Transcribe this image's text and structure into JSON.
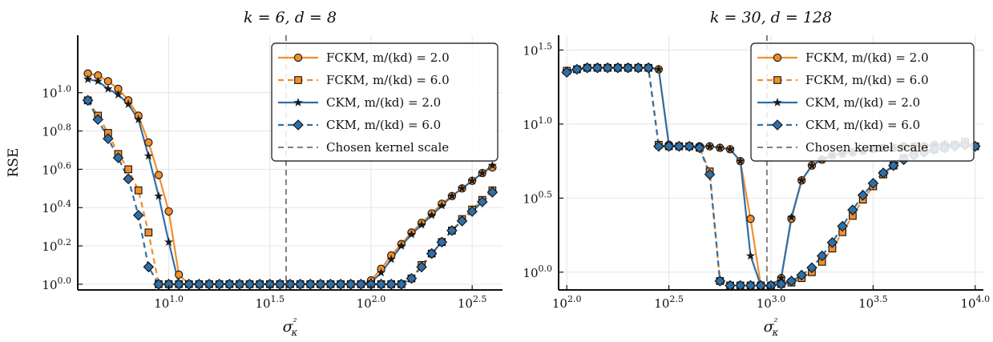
{
  "chart_data": [
    {
      "type": "line",
      "title": "k = 6,  d = 8",
      "xlabel": "σ²κ",
      "ylabel": "RSE",
      "xscale": "log10",
      "yscale": "log10",
      "xlim": [
        0.55,
        2.65
      ],
      "ylim": [
        -0.03,
        1.3
      ],
      "xticks": [
        1.0,
        1.5,
        2.0,
        2.5
      ],
      "xtick_labels": [
        "10^1.0",
        "10^1.5",
        "10^2.0",
        "10^2.5"
      ],
      "yticks": [
        0.0,
        0.2,
        0.4,
        0.6,
        0.8,
        1.0
      ],
      "ytick_labels": [
        "10^0.0",
        "10^0.2",
        "10^0.4",
        "10^0.6",
        "10^0.8",
        "10^1.0"
      ],
      "grid": true,
      "legend_position": "top-right",
      "vline": {
        "x": 1.58,
        "label": "Chosen kernel scale"
      },
      "series": [
        {
          "name": "FCKM, m/(kd) = 2.0",
          "color": "#f28e2b",
          "dash": "solid",
          "marker": "circle",
          "x": [
            0.6,
            0.65,
            0.7,
            0.75,
            0.8,
            0.85,
            0.9,
            0.95,
            1.0,
            1.05,
            1.1,
            1.15,
            1.2,
            1.25,
            1.3,
            1.35,
            1.4,
            1.45,
            1.5,
            1.55,
            1.6,
            1.65,
            1.7,
            1.75,
            1.8,
            1.85,
            1.9,
            1.95,
            2.0,
            2.05,
            2.1,
            2.15,
            2.2,
            2.25,
            2.3,
            2.35,
            2.4,
            2.45,
            2.5,
            2.55,
            2.6
          ],
          "y": [
            1.1,
            1.09,
            1.06,
            1.02,
            0.96,
            0.88,
            0.74,
            0.57,
            0.38,
            0.05,
            0.0,
            0.0,
            0.0,
            0.0,
            0.0,
            0.0,
            0.0,
            0.0,
            0.0,
            0.0,
            0.0,
            0.0,
            0.0,
            0.0,
            0.0,
            0.0,
            0.0,
            0.0,
            0.02,
            0.08,
            0.15,
            0.21,
            0.27,
            0.32,
            0.37,
            0.42,
            0.46,
            0.5,
            0.54,
            0.58,
            0.61
          ]
        },
        {
          "name": "FCKM, m/(kd) = 6.0",
          "color": "#f28e2b",
          "dash": "dashed",
          "marker": "square",
          "x": [
            0.6,
            0.65,
            0.7,
            0.75,
            0.8,
            0.85,
            0.9,
            0.95,
            1.0,
            1.05,
            1.1,
            1.15,
            1.2,
            1.25,
            1.3,
            1.35,
            1.4,
            1.45,
            1.5,
            1.55,
            1.6,
            1.65,
            1.7,
            1.75,
            1.8,
            1.85,
            1.9,
            1.95,
            2.0,
            2.05,
            2.1,
            2.15,
            2.2,
            2.25,
            2.3,
            2.35,
            2.4,
            2.45,
            2.5,
            2.55,
            2.6
          ],
          "y": [
            0.96,
            0.88,
            0.79,
            0.68,
            0.6,
            0.49,
            0.27,
            0.0,
            0.0,
            0.0,
            0.0,
            0.0,
            0.0,
            0.0,
            0.0,
            0.0,
            0.0,
            0.0,
            0.0,
            0.0,
            0.0,
            0.0,
            0.0,
            0.0,
            0.0,
            0.0,
            0.0,
            0.0,
            0.0,
            0.0,
            0.0,
            0.0,
            0.03,
            0.1,
            0.16,
            0.22,
            0.28,
            0.34,
            0.39,
            0.44,
            0.49
          ]
        },
        {
          "name": "CKM, m/(kd) = 2.0",
          "color": "#2f6fa8",
          "dash": "solid",
          "marker": "star",
          "x": [
            0.6,
            0.65,
            0.7,
            0.75,
            0.8,
            0.85,
            0.9,
            0.95,
            1.0,
            1.05,
            1.1,
            1.15,
            1.2,
            1.25,
            1.3,
            1.35,
            1.4,
            1.45,
            1.5,
            1.55,
            1.6,
            1.65,
            1.7,
            1.75,
            1.8,
            1.85,
            1.9,
            1.95,
            2.0,
            2.05,
            2.1,
            2.15,
            2.2,
            2.25,
            2.3,
            2.35,
            2.4,
            2.45,
            2.5,
            2.55,
            2.6
          ],
          "y": [
            1.07,
            1.06,
            1.02,
            0.99,
            0.94,
            0.86,
            0.67,
            0.46,
            0.22,
            0.0,
            0.0,
            0.0,
            0.0,
            0.0,
            0.0,
            0.0,
            0.0,
            0.0,
            0.0,
            0.0,
            0.0,
            0.0,
            0.0,
            0.0,
            0.0,
            0.0,
            0.0,
            0.0,
            0.01,
            0.06,
            0.13,
            0.2,
            0.26,
            0.31,
            0.36,
            0.41,
            0.46,
            0.5,
            0.54,
            0.58,
            0.62
          ]
        },
        {
          "name": "CKM, m/(kd) = 6.0",
          "color": "#2f6fa8",
          "dash": "dashed",
          "marker": "diamond",
          "x": [
            0.6,
            0.65,
            0.7,
            0.75,
            0.8,
            0.85,
            0.9,
            0.95,
            1.0,
            1.05,
            1.1,
            1.15,
            1.2,
            1.25,
            1.3,
            1.35,
            1.4,
            1.45,
            1.5,
            1.55,
            1.6,
            1.65,
            1.7,
            1.75,
            1.8,
            1.85,
            1.9,
            1.95,
            2.0,
            2.05,
            2.1,
            2.15,
            2.2,
            2.25,
            2.3,
            2.35,
            2.4,
            2.45,
            2.5,
            2.55,
            2.6
          ],
          "y": [
            0.96,
            0.86,
            0.76,
            0.66,
            0.55,
            0.36,
            0.09,
            0.0,
            0.0,
            0.0,
            0.0,
            0.0,
            0.0,
            0.0,
            0.0,
            0.0,
            0.0,
            0.0,
            0.0,
            0.0,
            0.0,
            0.0,
            0.0,
            0.0,
            0.0,
            0.0,
            0.0,
            0.0,
            0.0,
            0.0,
            0.0,
            0.0,
            0.03,
            0.09,
            0.16,
            0.22,
            0.28,
            0.33,
            0.38,
            0.43,
            0.48
          ]
        }
      ]
    },
    {
      "type": "line",
      "title": "k = 30,  d = 128",
      "xlabel": "σ²κ",
      "ylabel": "",
      "xscale": "log10",
      "yscale": "log10",
      "xlim": [
        1.96,
        4.04
      ],
      "ylim": [
        -0.12,
        1.6
      ],
      "xticks": [
        2.0,
        2.5,
        3.0,
        3.5,
        4.0
      ],
      "xtick_labels": [
        "10^2.0",
        "10^2.5",
        "10^3.0",
        "10^3.5",
        "10^4.0"
      ],
      "yticks": [
        0.0,
        0.5,
        1.0,
        1.5
      ],
      "ytick_labels": [
        "10^0.0",
        "10^0.5",
        "10^1.0",
        "10^1.5"
      ],
      "grid": true,
      "legend_position": "top-right",
      "vline": {
        "x": 2.98,
        "label": "Chosen kernel scale"
      },
      "series": [
        {
          "name": "FCKM, m/(kd) = 2.0",
          "color": "#f28e2b",
          "dash": "solid",
          "marker": "circle",
          "x": [
            2.0,
            2.05,
            2.1,
            2.15,
            2.2,
            2.25,
            2.3,
            2.35,
            2.4,
            2.45,
            2.5,
            2.55,
            2.6,
            2.65,
            2.7,
            2.75,
            2.8,
            2.85,
            2.9,
            2.95,
            3.0,
            3.05,
            3.1,
            3.15,
            3.2,
            3.25,
            3.3,
            3.35,
            3.4,
            3.45,
            3.5,
            3.55,
            3.6,
            3.65,
            3.7,
            3.75,
            3.8,
            3.85,
            3.9,
            3.95,
            4.0
          ],
          "y": [
            1.36,
            1.37,
            1.38,
            1.38,
            1.38,
            1.38,
            1.38,
            1.38,
            1.38,
            1.37,
            0.86,
            0.85,
            0.85,
            0.85,
            0.85,
            0.84,
            0.83,
            0.75,
            0.36,
            -0.09,
            -0.09,
            -0.04,
            0.36,
            0.62,
            0.72,
            0.76,
            0.79,
            0.8,
            0.81,
            0.82,
            0.83,
            0.84,
            0.84,
            0.85,
            0.85,
            0.85,
            0.86,
            0.86,
            0.86,
            0.86,
            0.85
          ]
        },
        {
          "name": "FCKM, m/(kd) = 6.0",
          "color": "#f28e2b",
          "dash": "dashed",
          "marker": "square",
          "x": [
            2.0,
            2.05,
            2.1,
            2.15,
            2.2,
            2.25,
            2.3,
            2.35,
            2.4,
            2.45,
            2.5,
            2.55,
            2.6,
            2.65,
            2.7,
            2.75,
            2.8,
            2.85,
            2.9,
            2.95,
            3.0,
            3.05,
            3.1,
            3.15,
            3.2,
            3.25,
            3.3,
            3.35,
            3.4,
            3.45,
            3.5,
            3.55,
            3.6,
            3.65,
            3.7,
            3.75,
            3.8,
            3.85,
            3.9,
            3.95,
            4.0
          ],
          "y": [
            1.36,
            1.37,
            1.38,
            1.38,
            1.38,
            1.38,
            1.38,
            1.38,
            1.38,
            0.86,
            0.85,
            0.85,
            0.85,
            0.84,
            0.68,
            -0.06,
            -0.09,
            -0.09,
            -0.09,
            -0.09,
            -0.09,
            -0.08,
            -0.07,
            -0.04,
            0.0,
            0.07,
            0.16,
            0.27,
            0.38,
            0.49,
            0.58,
            0.66,
            0.72,
            0.77,
            0.8,
            0.82,
            0.83,
            0.84,
            0.86,
            0.88,
            0.85
          ]
        },
        {
          "name": "CKM, m/(kd) = 2.0",
          "color": "#2f6fa8",
          "dash": "solid",
          "marker": "star",
          "x": [
            2.0,
            2.05,
            2.1,
            2.15,
            2.2,
            2.25,
            2.3,
            2.35,
            2.4,
            2.45,
            2.5,
            2.55,
            2.6,
            2.65,
            2.7,
            2.75,
            2.8,
            2.85,
            2.9,
            2.95,
            3.0,
            3.05,
            3.1,
            3.15,
            3.2,
            3.25,
            3.3,
            3.35,
            3.4,
            3.45,
            3.5,
            3.55,
            3.6,
            3.65,
            3.7,
            3.75,
            3.8,
            3.85,
            3.9,
            3.95,
            4.0
          ],
          "y": [
            1.36,
            1.37,
            1.38,
            1.38,
            1.38,
            1.38,
            1.38,
            1.38,
            1.38,
            1.37,
            0.86,
            0.85,
            0.85,
            0.85,
            0.85,
            0.84,
            0.83,
            0.75,
            0.11,
            -0.09,
            -0.09,
            -0.04,
            0.37,
            0.62,
            0.72,
            0.76,
            0.79,
            0.8,
            0.81,
            0.82,
            0.83,
            0.84,
            0.84,
            0.85,
            0.85,
            0.85,
            0.86,
            0.86,
            0.86,
            0.86,
            0.85
          ]
        },
        {
          "name": "CKM, m/(kd) = 6.0",
          "color": "#2f6fa8",
          "dash": "dashed",
          "marker": "diamond",
          "x": [
            2.0,
            2.05,
            2.1,
            2.15,
            2.2,
            2.25,
            2.3,
            2.35,
            2.4,
            2.45,
            2.5,
            2.55,
            2.6,
            2.65,
            2.7,
            2.75,
            2.8,
            2.85,
            2.9,
            2.95,
            3.0,
            3.05,
            3.1,
            3.15,
            3.2,
            3.25,
            3.3,
            3.35,
            3.4,
            3.45,
            3.5,
            3.55,
            3.6,
            3.65,
            3.7,
            3.75,
            3.8,
            3.85,
            3.9,
            3.95,
            4.0
          ],
          "y": [
            1.35,
            1.37,
            1.38,
            1.38,
            1.38,
            1.38,
            1.38,
            1.38,
            1.38,
            0.85,
            0.85,
            0.85,
            0.85,
            0.84,
            0.66,
            -0.06,
            -0.09,
            -0.09,
            -0.09,
            -0.09,
            -0.09,
            -0.08,
            -0.06,
            -0.02,
            0.03,
            0.11,
            0.2,
            0.31,
            0.42,
            0.52,
            0.6,
            0.67,
            0.72,
            0.76,
            0.79,
            0.81,
            0.83,
            0.84,
            0.85,
            0.86,
            0.85
          ]
        }
      ]
    }
  ]
}
